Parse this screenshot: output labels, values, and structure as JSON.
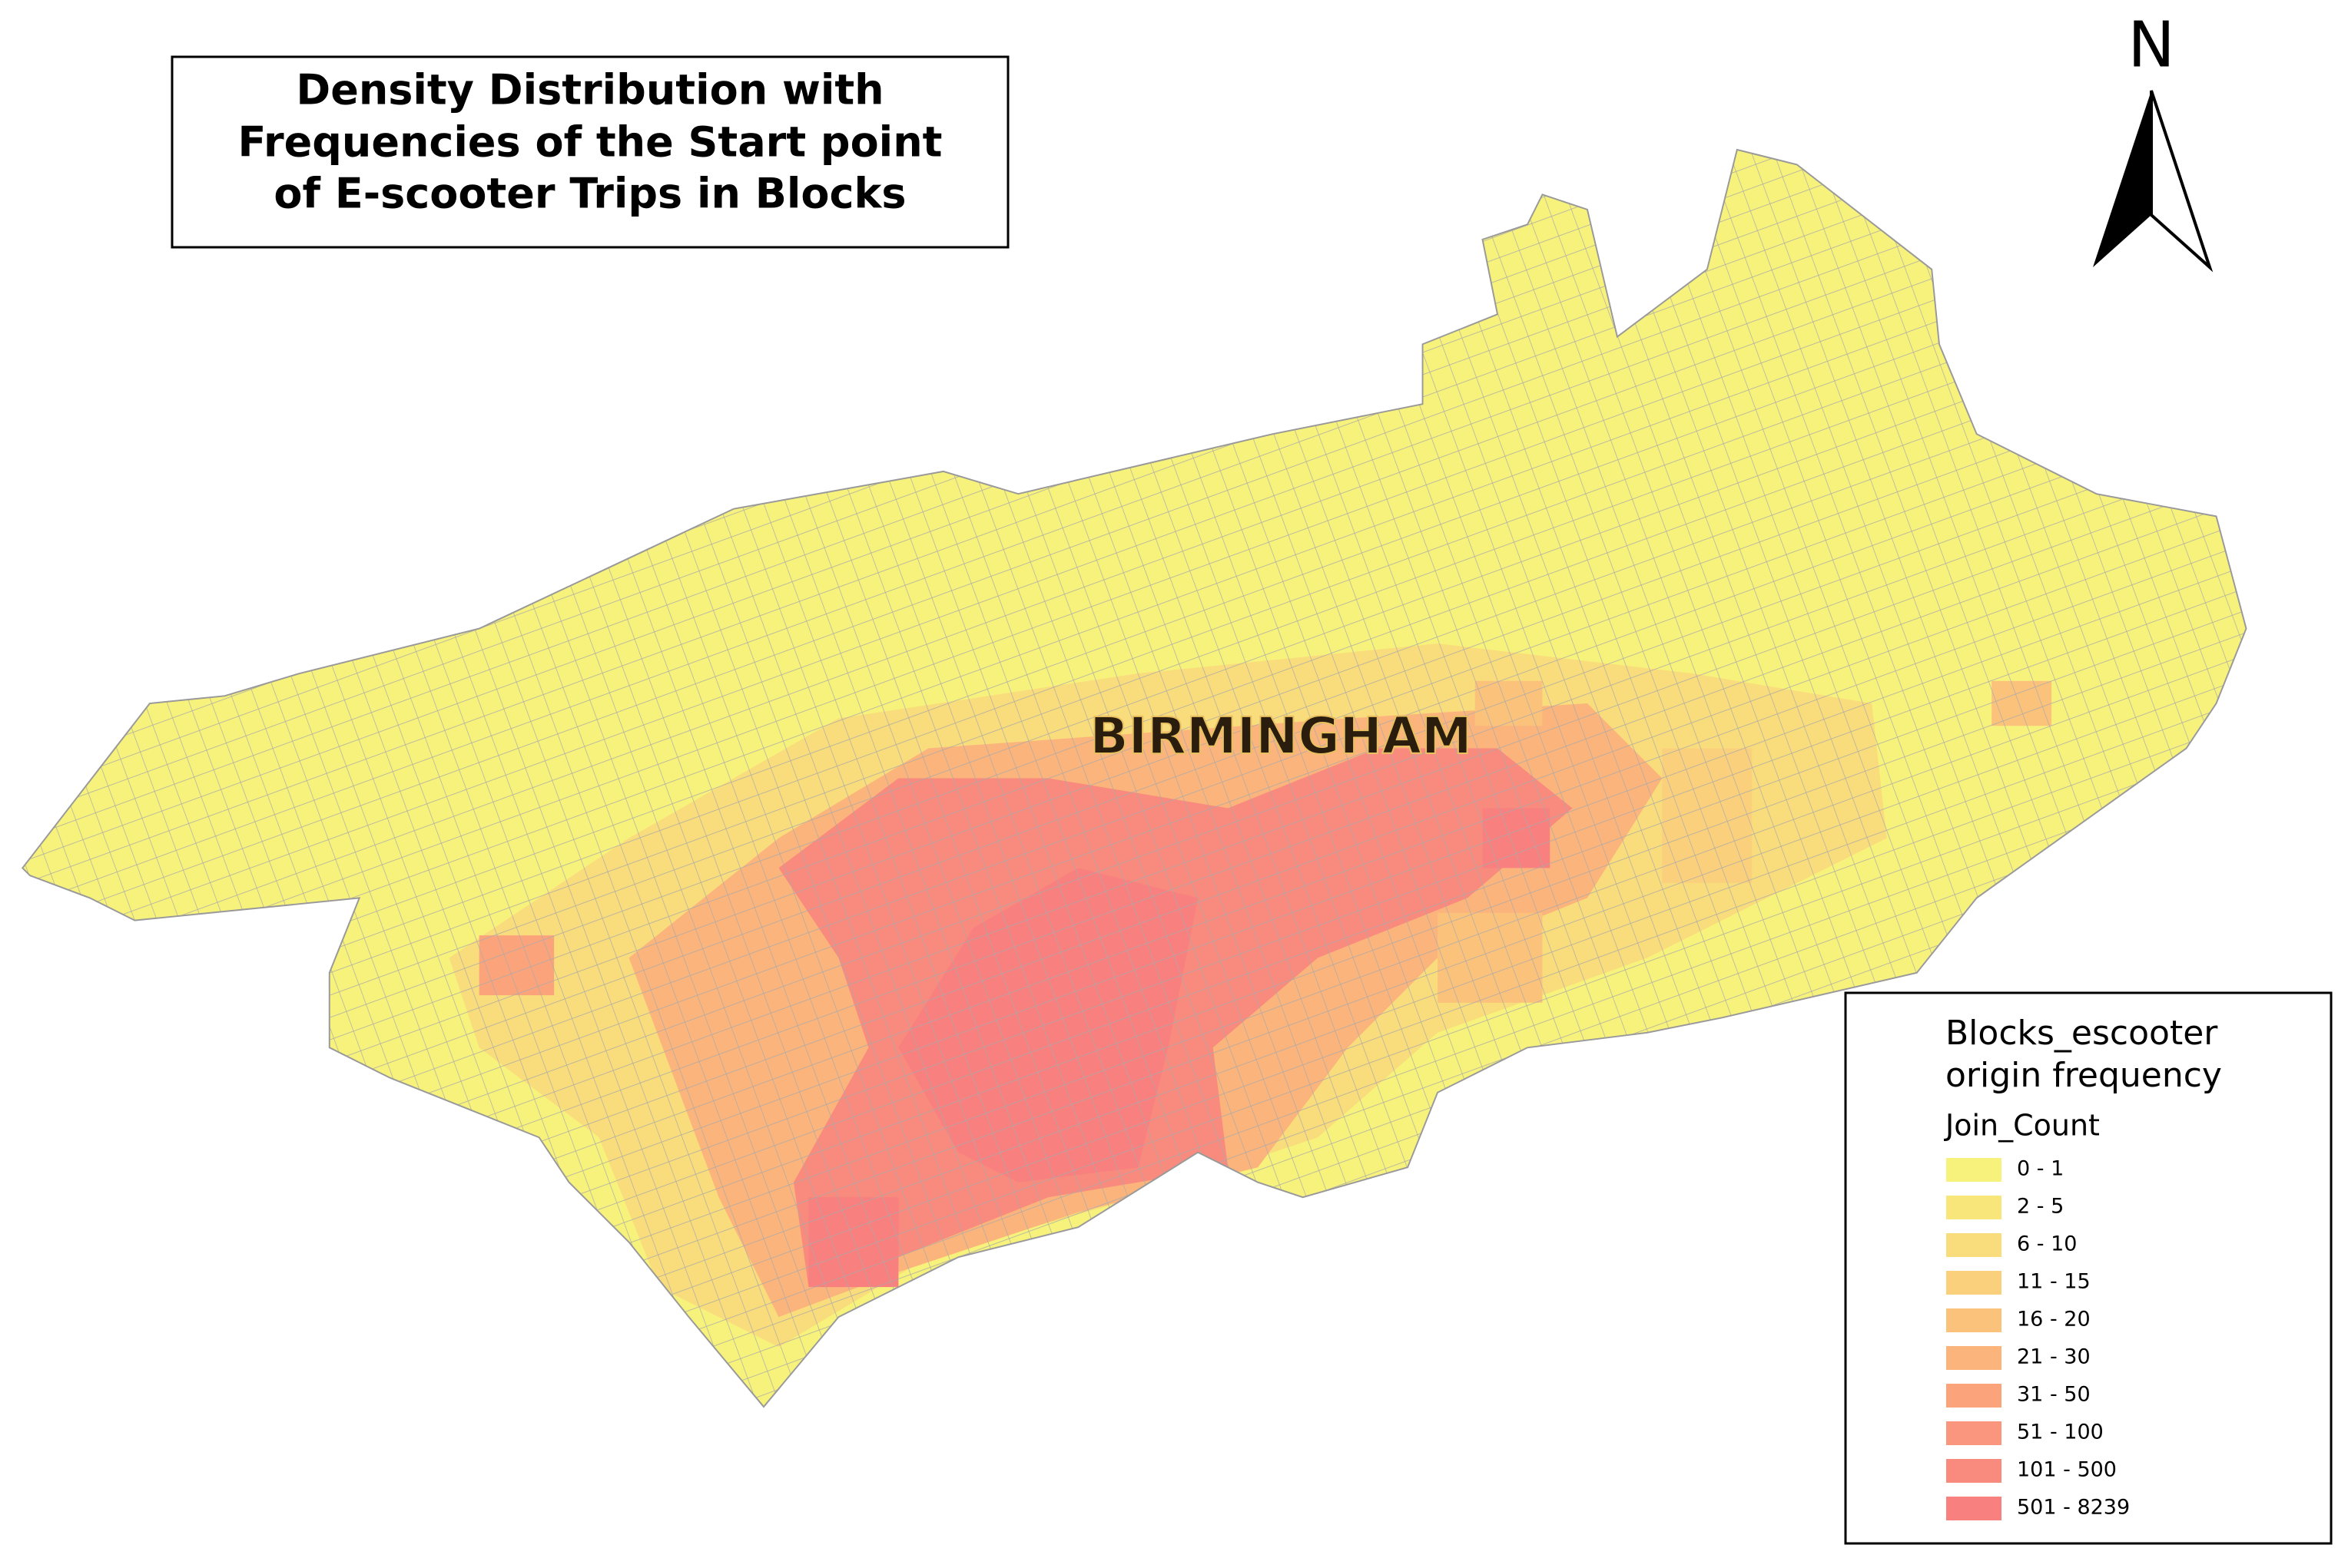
{
  "title": [
    "Density Distribution with",
    "Frequencies of the Start point",
    "of E-scooter Trips in Blocks"
  ],
  "north_arrow": {
    "label": "N"
  },
  "map": {
    "city_label": "BIRMINGHAM"
  },
  "legend": {
    "title": [
      "Blocks_escooter",
      "origin frequency"
    ],
    "field": "Join_Count",
    "classes": [
      {
        "label": "0 - 1",
        "color": "#f7f27b"
      },
      {
        "label": "2 - 5",
        "color": "#f8e67a"
      },
      {
        "label": "6 - 10",
        "color": "#f9dc7b"
      },
      {
        "label": "11 - 15",
        "color": "#fad07c"
      },
      {
        "label": "16 - 20",
        "color": "#fbc27c"
      },
      {
        "label": "21 - 30",
        "color": "#fbb47c"
      },
      {
        "label": "31 - 50",
        "color": "#fba47c"
      },
      {
        "label": "51 - 100",
        "color": "#fa967e"
      },
      {
        "label": "101 - 500",
        "color": "#f98a7e"
      },
      {
        "label": "501 - 8239",
        "color": "#f8807f"
      }
    ]
  }
}
